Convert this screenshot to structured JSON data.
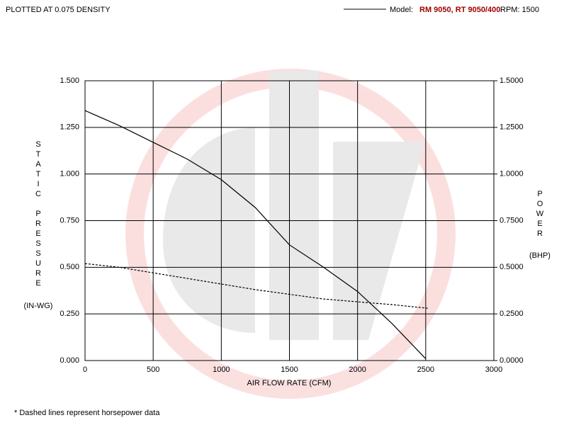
{
  "chart_data": {
    "type": "line",
    "title": "PLOTTED AT 0.075 DENSITY",
    "legend": {
      "label": "Model:",
      "model": "RM 9050, RT 9050/400",
      "rpm": "RPM: 1500"
    },
    "xlabel": "AIR FLOW RATE (CFM)",
    "ylabel": "STATIC PRESSURE",
    "yunit": "(IN-WG)",
    "y2label": "POWER",
    "y2unit": "(BHP)",
    "footnote": "* Dashed lines represent horsepower data",
    "xlim": [
      0,
      3000
    ],
    "xticks": [
      0,
      500,
      1000,
      1500,
      2000,
      2500,
      3000
    ],
    "ylim": [
      0,
      1.5
    ],
    "yticks": [
      {
        "value": 0,
        "label": "0.000"
      },
      {
        "value": 0.25,
        "label": "0.250"
      },
      {
        "value": 0.5,
        "label": "0.500"
      },
      {
        "value": 0.75,
        "label": "0.750"
      },
      {
        "value": 1,
        "label": "1.000"
      },
      {
        "value": 1.25,
        "label": "1.250"
      },
      {
        "value": 1.5,
        "label": "1.500"
      }
    ],
    "y2lim": [
      0,
      1.5
    ],
    "y2ticks": [
      {
        "value": 0,
        "label": "0.0000"
      },
      {
        "value": 0.25,
        "label": "0.2500"
      },
      {
        "value": 0.5,
        "label": "0.5000"
      },
      {
        "value": 0.75,
        "label": "0.7500"
      },
      {
        "value": 1,
        "label": "1.0000"
      },
      {
        "value": 1.25,
        "label": "1.2500"
      },
      {
        "value": 1.5,
        "label": "1.5000"
      }
    ],
    "grid": true,
    "series": [
      {
        "color": "#000000",
        "dash": false,
        "x": [
          0,
          250,
          500,
          750,
          1000,
          1250,
          1500,
          1750,
          2000,
          2250,
          2500
        ],
        "values": [
          1.34,
          1.26,
          1.17,
          1.08,
          0.97,
          0.82,
          0.62,
          0.5,
          0.37,
          0.2,
          0.01
        ]
      },
      {
        "color": "#000000",
        "dash": true,
        "axis": "y2",
        "x": [
          0,
          250,
          500,
          750,
          1000,
          1250,
          1500,
          1750,
          2000,
          2250,
          2520
        ],
        "values": [
          0.52,
          0.5,
          0.47,
          0.44,
          0.41,
          0.38,
          0.355,
          0.33,
          0.315,
          0.3,
          0.28
        ]
      }
    ]
  }
}
